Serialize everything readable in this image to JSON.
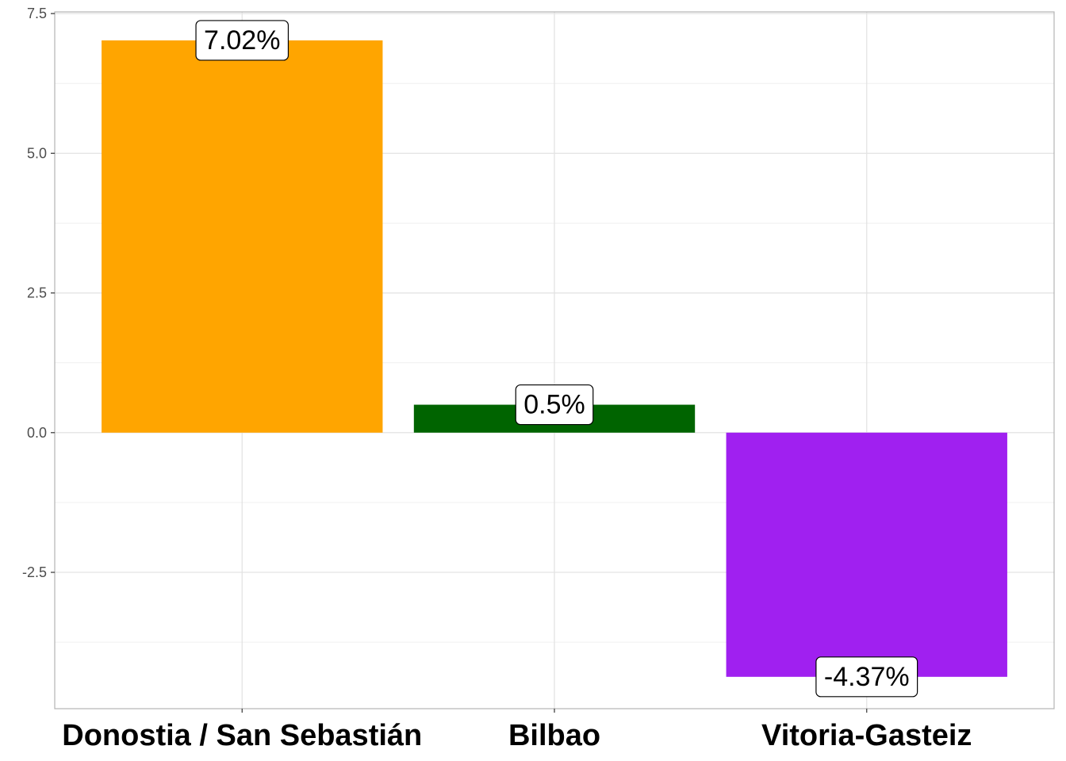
{
  "chart_data": {
    "type": "bar",
    "categories": [
      "Donostia / San Sebastián",
      "Bilbao",
      "Vitoria-Gasteiz"
    ],
    "values": [
      7.02,
      0.5,
      -4.37
    ],
    "data_labels": [
      "7.02%",
      "0.5%",
      "-4.37%"
    ],
    "colors": [
      "#FFA500",
      "#006400",
      "#A020F0"
    ],
    "y_ticks": [
      -2.5,
      0.0,
      2.5,
      5.0,
      7.5
    ],
    "y_tick_labels": [
      "-2.5",
      "0.0",
      "2.5",
      "5.0",
      "7.5"
    ],
    "ylim": [
      -4.94,
      7.53
    ],
    "grid": true,
    "legend": "none",
    "title": "",
    "xlabel": "",
    "ylabel": ""
  }
}
